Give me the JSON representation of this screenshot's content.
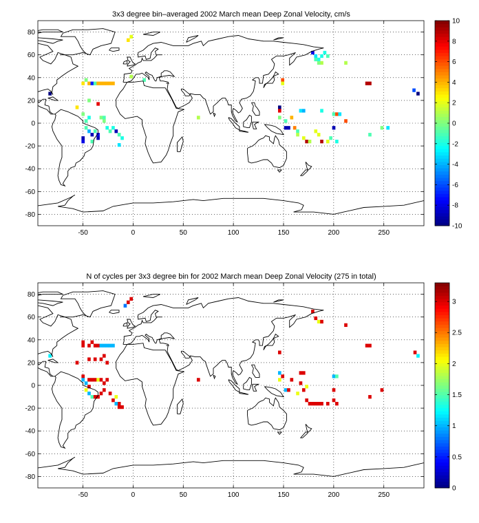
{
  "chart_data": [
    {
      "type": "heatmap",
      "title": "3x3 degree bin–averaged 2002 March mean Deep Zonal Velocity, cm/s",
      "xlabel": "",
      "ylabel": "",
      "xlim": [
        -95,
        290
      ],
      "ylim": [
        -90,
        90
      ],
      "xticks": [
        -50,
        0,
        50,
        100,
        150,
        200,
        250
      ],
      "yticks": [
        80,
        60,
        40,
        20,
        0,
        -20,
        -40,
        -60,
        -80
      ],
      "grid": true,
      "colorbar": {
        "min": -10,
        "max": 10,
        "ticks": [
          10,
          8,
          6,
          4,
          2,
          0,
          -2,
          -4,
          -6,
          -8,
          -10
        ],
        "colormap": "jet"
      },
      "bin_size_deg": 3,
      "cells": [
        [
          -5,
          73,
          3
        ],
        [
          -2,
          76,
          2
        ],
        [
          -83,
          26,
          -10
        ],
        [
          -50,
          35,
          3
        ],
        [
          -50,
          -16,
          -8
        ],
        [
          -47,
          38,
          0
        ],
        [
          -44,
          35,
          4
        ],
        [
          -41,
          35,
          -7
        ],
        [
          -38,
          35,
          -1
        ],
        [
          -35,
          35,
          4
        ],
        [
          -32,
          35,
          4
        ],
        [
          -29,
          35,
          4
        ],
        [
          -26,
          35,
          4
        ],
        [
          -23,
          35,
          4
        ],
        [
          -20,
          35,
          4
        ],
        [
          -56,
          14,
          3
        ],
        [
          -50,
          8,
          0
        ],
        [
          -47,
          2,
          -1
        ],
        [
          -44,
          5,
          -2
        ],
        [
          -47,
          -4,
          -1
        ],
        [
          -44,
          -7,
          -4
        ],
        [
          -41,
          -10,
          -9
        ],
        [
          -38,
          -7,
          -1
        ],
        [
          -35,
          -10,
          -8
        ],
        [
          -35,
          -13,
          -9
        ],
        [
          -32,
          5,
          0
        ],
        [
          -29,
          5,
          -1
        ],
        [
          -29,
          2,
          0
        ],
        [
          -26,
          -4,
          -2
        ],
        [
          -23,
          -7,
          -1
        ],
        [
          -20,
          -4,
          -2
        ],
        [
          -17,
          -7,
          -9
        ],
        [
          -14,
          -10,
          -1
        ],
        [
          -11,
          -13,
          -2
        ],
        [
          -14,
          -19,
          -3
        ],
        [
          -35,
          17,
          8
        ],
        [
          -44,
          20,
          0
        ],
        [
          -41,
          -16,
          -1
        ],
        [
          -50,
          -13,
          -9
        ],
        [
          146,
          14,
          -10
        ],
        [
          146,
          11,
          8
        ],
        [
          146,
          5,
          0
        ],
        [
          149,
          38,
          6
        ],
        [
          149,
          35,
          2
        ],
        [
          152,
          -4,
          -9
        ],
        [
          155,
          -4,
          -9
        ],
        [
          152,
          2,
          -1
        ],
        [
          158,
          5,
          4
        ],
        [
          161,
          -4,
          5
        ],
        [
          164,
          -7,
          -1
        ],
        [
          164,
          -10,
          1
        ],
        [
          167,
          11,
          -3
        ],
        [
          170,
          11,
          -4
        ],
        [
          170,
          -13,
          2
        ],
        [
          173,
          -16,
          9
        ],
        [
          176,
          -16,
          1
        ],
        [
          179,
          62,
          -8
        ],
        [
          182,
          59,
          -3
        ],
        [
          185,
          56,
          -2
        ],
        [
          188,
          53,
          1
        ],
        [
          182,
          56,
          -1
        ],
        [
          185,
          53,
          0
        ],
        [
          188,
          59,
          -2
        ],
        [
          191,
          62,
          -2
        ],
        [
          194,
          59,
          -1
        ],
        [
          212,
          53,
          1
        ],
        [
          188,
          11,
          -2
        ],
        [
          200,
          8,
          -1
        ],
        [
          203,
          8,
          6
        ],
        [
          206,
          8,
          -3
        ],
        [
          200,
          -4,
          -9
        ],
        [
          182,
          -7,
          2
        ],
        [
          185,
          -10,
          2
        ],
        [
          188,
          -16,
          9
        ],
        [
          194,
          -16,
          2
        ],
        [
          197,
          -13,
          -1
        ],
        [
          203,
          -16,
          -2
        ],
        [
          236,
          -10,
          -1
        ],
        [
          254,
          -4,
          -3
        ],
        [
          233,
          35,
          9
        ],
        [
          236,
          35,
          9
        ],
        [
          284,
          26,
          -10
        ],
        [
          280,
          29,
          -6
        ],
        [
          248,
          -4,
          0
        ],
        [
          212,
          2,
          6
        ],
        [
          65,
          5,
          1
        ],
        [
          11,
          38,
          -1
        ],
        [
          -2,
          41,
          1
        ]
      ]
    },
    {
      "type": "heatmap",
      "title": "N of cycles per 3x3 degree bin for 2002 March mean Deep Zonal Velocity (275 in total)",
      "xlabel": "",
      "ylabel": "",
      "xlim": [
        -95,
        290
      ],
      "ylim": [
        -90,
        90
      ],
      "xticks": [
        -50,
        0,
        50,
        100,
        150,
        200,
        250
      ],
      "yticks": [
        80,
        60,
        40,
        20,
        0,
        -20,
        -40,
        -60,
        -80
      ],
      "grid": true,
      "colorbar": {
        "min": 0,
        "max": 3.3,
        "ticks": [
          3,
          2.5,
          2,
          1.5,
          1,
          0.5,
          0
        ],
        "colormap": "jet"
      },
      "bin_size_deg": 3,
      "cells": [
        [
          -5,
          73,
          3
        ],
        [
          -2,
          76,
          3
        ],
        [
          -8,
          70,
          0.8
        ],
        [
          -83,
          26,
          1.2
        ],
        [
          -50,
          35,
          3
        ],
        [
          -50,
          38,
          3
        ],
        [
          -44,
          35,
          3
        ],
        [
          -41,
          38,
          3
        ],
        [
          -38,
          35,
          3
        ],
        [
          -35,
          35,
          3
        ],
        [
          -32,
          35,
          1
        ],
        [
          -29,
          35,
          1
        ],
        [
          -26,
          35,
          1
        ],
        [
          -23,
          35,
          1
        ],
        [
          -20,
          35,
          1
        ],
        [
          -44,
          23,
          3
        ],
        [
          -38,
          23,
          3
        ],
        [
          -32,
          23,
          3
        ],
        [
          -29,
          26,
          3
        ],
        [
          -26,
          20,
          3
        ],
        [
          -56,
          20,
          3
        ],
        [
          -50,
          8,
          3
        ],
        [
          -50,
          5,
          1
        ],
        [
          -47,
          2,
          1
        ],
        [
          -44,
          5,
          3
        ],
        [
          -41,
          5,
          3
        ],
        [
          -38,
          5,
          3
        ],
        [
          -35,
          5,
          2
        ],
        [
          -32,
          5,
          3
        ],
        [
          -29,
          2,
          3
        ],
        [
          -26,
          5,
          3
        ],
        [
          -47,
          -4,
          2
        ],
        [
          -44,
          -7,
          1
        ],
        [
          -41,
          -10,
          1.5
        ],
        [
          -38,
          -10,
          3
        ],
        [
          -35,
          -10,
          3
        ],
        [
          -32,
          -7,
          3
        ],
        [
          -29,
          -4,
          3
        ],
        [
          -23,
          -7,
          3
        ],
        [
          -20,
          -13,
          3
        ],
        [
          -17,
          -10,
          2
        ],
        [
          -14,
          -16,
          3
        ],
        [
          -14,
          -19,
          3
        ],
        [
          -11,
          -19,
          3
        ],
        [
          -17,
          -16,
          1
        ],
        [
          -44,
          -1,
          3
        ],
        [
          65,
          5,
          3
        ],
        [
          146,
          29,
          3
        ],
        [
          146,
          11,
          1
        ],
        [
          146,
          5,
          2
        ],
        [
          149,
          8,
          3
        ],
        [
          152,
          -4,
          1
        ],
        [
          155,
          -4,
          3
        ],
        [
          158,
          5,
          3
        ],
        [
          164,
          -7,
          2
        ],
        [
          167,
          11,
          3
        ],
        [
          170,
          11,
          3
        ],
        [
          173,
          -13,
          3
        ],
        [
          176,
          -16,
          3
        ],
        [
          179,
          -16,
          3
        ],
        [
          182,
          -16,
          3
        ],
        [
          170,
          -4,
          3
        ],
        [
          173,
          -1,
          2
        ],
        [
          167,
          2,
          3
        ],
        [
          179,
          65,
          3
        ],
        [
          182,
          59,
          3
        ],
        [
          185,
          56,
          2
        ],
        [
          188,
          56,
          3
        ],
        [
          212,
          53,
          3
        ],
        [
          200,
          8,
          1
        ],
        [
          203,
          8,
          1.5
        ],
        [
          200,
          -4,
          3
        ],
        [
          200,
          -13,
          3
        ],
        [
          203,
          -16,
          3
        ],
        [
          185,
          -16,
          3
        ],
        [
          188,
          -16,
          3
        ],
        [
          194,
          -16,
          3
        ],
        [
          236,
          -10,
          3
        ],
        [
          248,
          -4,
          3
        ],
        [
          233,
          35,
          3
        ],
        [
          236,
          35,
          3
        ],
        [
          284,
          26,
          1.2
        ],
        [
          281,
          29,
          3
        ]
      ]
    }
  ]
}
